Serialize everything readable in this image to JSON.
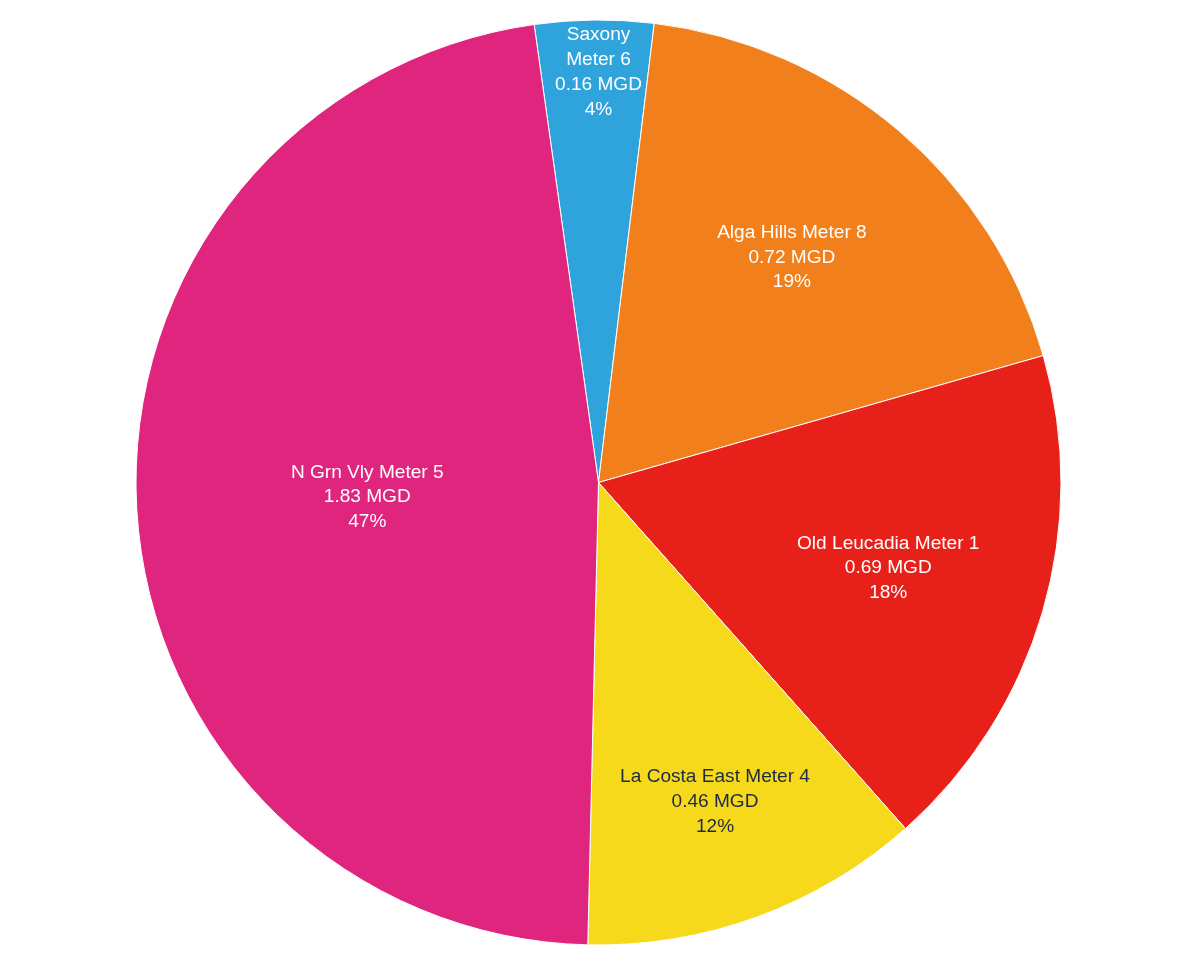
{
  "chart_data": {
    "type": "pie",
    "categories": [
      "Saxony\nMeter 6",
      "Alga Hills Meter 8",
      "Old Leucadia Meter 1",
      "La Costa East Meter 4",
      "N Grn Vly Meter 5"
    ],
    "values": [
      0.16,
      0.72,
      0.69,
      0.46,
      1.83
    ],
    "value_labels": [
      "0.16 MGD\n4%",
      "0.72 MGD\n19%",
      "0.69 MGD\n18%",
      "0.46 MGD\n12%",
      "1.83 MGD\n47%"
    ],
    "colors": [
      "#2ea3dc",
      "#f07f1c",
      "#e8201a",
      "#f5d91a",
      "#e0257f"
    ]
  }
}
